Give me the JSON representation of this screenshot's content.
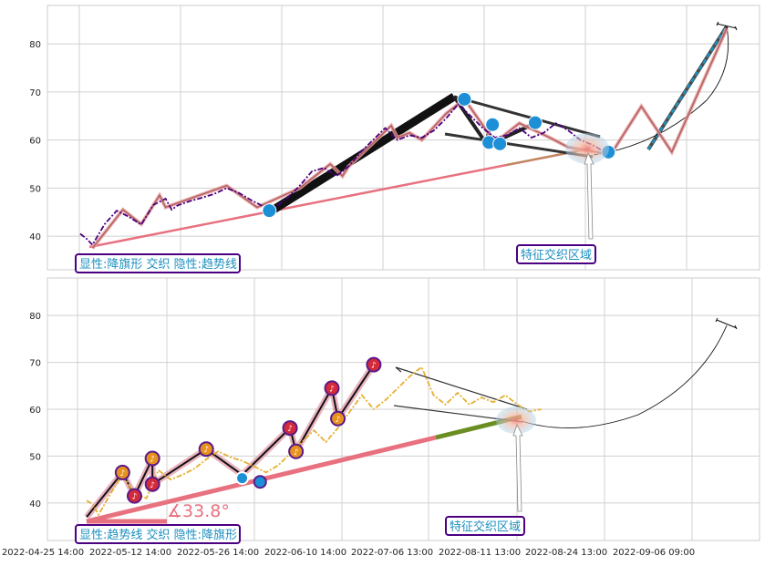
{
  "chart_data": [
    {
      "type": "line",
      "panel": "top",
      "ylim": [
        33,
        88
      ],
      "yticks": [
        "40",
        "50",
        "60",
        "70",
        "80"
      ],
      "grid": true,
      "annotations": {
        "left_box": "显性:降旗形 交织 隐性:趋势线",
        "right_box": "特征交织区域"
      },
      "series": [
        {
          "color": "#4b0082",
          "style": "dashdot",
          "points": [
            [
              0,
              40.5
            ],
            [
              0.5,
              39.5
            ],
            [
              1,
              38.2
            ],
            [
              2,
              42.5
            ],
            [
              3,
              45.3
            ],
            [
              4,
              44
            ],
            [
              5,
              42.4
            ],
            [
              6,
              46.5
            ],
            [
              7,
              47.8
            ],
            [
              7.5,
              45.5
            ],
            [
              8,
              46.4
            ],
            [
              9,
              47.3
            ],
            [
              10,
              48
            ],
            [
              11,
              48.8
            ],
            [
              12,
              50
            ],
            [
              13,
              49
            ],
            [
              14,
              47.5
            ],
            [
              15,
              46.2
            ],
            [
              16,
              46
            ],
            [
              17,
              48
            ],
            [
              18,
              50.5
            ],
            [
              19,
              53.5
            ],
            [
              20,
              54.2
            ],
            [
              21,
              52.5
            ],
            [
              22,
              54.5
            ],
            [
              23,
              57.5
            ],
            [
              24,
              60
            ],
            [
              25,
              62.5
            ],
            [
              26,
              60
            ],
            [
              27,
              61
            ],
            [
              28,
              60.5
            ],
            [
              29,
              62
            ],
            [
              30,
              64.5
            ],
            [
              31,
              67.5
            ],
            [
              32,
              65
            ],
            [
              33,
              62.5
            ],
            [
              34,
              60.5
            ],
            [
              35,
              61
            ],
            [
              36,
              62.5
            ],
            [
              37,
              60.5
            ],
            [
              38,
              61.5
            ],
            [
              39,
              63.5
            ],
            [
              40,
              62
            ],
            [
              41,
              60
            ],
            [
              42,
              59
            ],
            [
              43,
              57.5
            ]
          ]
        },
        {
          "color": "#b06060",
          "style": "solid",
          "name": "zigzag",
          "points": [
            [
              1,
              37.5
            ],
            [
              3.5,
              45.5
            ],
            [
              5,
              42.5
            ],
            [
              6.5,
              48.5
            ],
            [
              7,
              46
            ],
            [
              12,
              50.5
            ],
            [
              14.5,
              46
            ],
            [
              18,
              50
            ],
            [
              20.5,
              55
            ],
            [
              21.5,
              52.5
            ],
            [
              22,
              54.5
            ],
            [
              25.5,
              63
            ],
            [
              26,
              60.5
            ],
            [
              27,
              61.5
            ],
            [
              28,
              60
            ],
            [
              30,
              65.5
            ],
            [
              31.5,
              68.5
            ],
            [
              34,
              59.5
            ],
            [
              36,
              63.5
            ],
            [
              38.5,
              60.5
            ],
            [
              40,
              58.5
            ],
            [
              43.5,
              57
            ],
            [
              46,
              67
            ],
            [
              48.5,
              57.5
            ],
            [
              53,
              83.2
            ]
          ]
        }
      ],
      "markers": [
        [
          15.5,
          45.3
        ],
        [
          31.5,
          68.5
        ],
        [
          33.5,
          59.5
        ],
        [
          33.8,
          63.2
        ],
        [
          34.4,
          59.2
        ],
        [
          37.3,
          63.6
        ],
        [
          43.3,
          57.5
        ]
      ]
    },
    {
      "type": "line",
      "panel": "bottom",
      "ylim": [
        32,
        88
      ],
      "yticks": [
        "40",
        "50",
        "60",
        "70",
        "80"
      ],
      "grid": true,
      "x_tick_labels": [
        "2022-04-25 14:00",
        "2022-05-12 14:00",
        "2022-05-26 14:00",
        "2022-06-10 14:00",
        "2022-07-06 13:00",
        "2022-08-11 13:00",
        "2022-08-24 13:00",
        "2022-09-06 09:00"
      ],
      "annotations": {
        "left_box": "显性:趋势线 交织 隐性:降旗形",
        "right_box": "特征交织区域",
        "angle_label": "∡33.8°"
      },
      "series": [
        {
          "color": "#e6b030",
          "style": "dashdot",
          "points": [
            [
              0,
              40.5
            ],
            [
              0.5,
              39.8
            ],
            [
              1,
              37.5
            ],
            [
              2,
              42
            ],
            [
              3,
              46
            ],
            [
              4,
              42
            ],
            [
              5,
              41
            ],
            [
              6,
              47
            ],
            [
              7,
              45
            ],
            [
              8,
              46
            ],
            [
              9,
              47.3
            ],
            [
              10,
              49.3
            ],
            [
              11,
              51
            ],
            [
              12,
              49.8
            ],
            [
              13,
              49
            ],
            [
              14,
              47.8
            ],
            [
              15,
              46.5
            ],
            [
              16,
              48
            ],
            [
              17,
              50.5
            ],
            [
              18,
              53
            ],
            [
              19,
              55.5
            ],
            [
              20,
              53
            ],
            [
              21,
              56
            ],
            [
              22,
              59.5
            ],
            [
              23,
              63
            ],
            [
              24,
              60
            ],
            [
              25,
              62
            ],
            [
              26,
              64.5
            ],
            [
              27,
              67
            ],
            [
              28,
              69
            ],
            [
              29,
              63
            ],
            [
              30,
              61
            ],
            [
              31,
              63.5
            ],
            [
              32,
              61
            ],
            [
              33,
              62.5
            ],
            [
              34,
              61.5
            ],
            [
              35,
              63
            ],
            [
              36,
              61
            ],
            [
              37,
              59.5
            ],
            [
              38,
              60
            ]
          ]
        }
      ],
      "lines": [
        {
          "name": "upper_zigzag",
          "color": "#111111",
          "points": [
            [
              0,
              37
            ],
            [
              3,
              46.5
            ],
            [
              4,
              41.5
            ],
            [
              5.5,
              49.5
            ],
            [
              5.5,
              44
            ],
            [
              10,
              51.5
            ],
            [
              13,
              46
            ],
            [
              17,
              56
            ],
            [
              17.5,
              51
            ],
            [
              20.5,
              64.5
            ],
            [
              21,
              58
            ],
            [
              24,
              69.5
            ]
          ]
        }
      ],
      "markers_red": [
        [
          3,
          46.5
        ],
        [
          4,
          41.5
        ],
        [
          5.5,
          49.5
        ],
        [
          5.5,
          44
        ],
        [
          10,
          51.5
        ],
        [
          17,
          56
        ],
        [
          17.5,
          51
        ],
        [
          20.5,
          64.5
        ],
        [
          21,
          58
        ],
        [
          24,
          69.5
        ]
      ],
      "markers_blue": [
        [
          13,
          45.3
        ],
        [
          14.5,
          44.5
        ]
      ],
      "marker_glyph": "♪"
    }
  ]
}
